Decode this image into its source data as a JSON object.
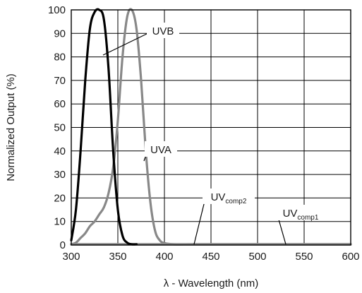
{
  "chart_data": {
    "type": "line",
    "xlabel": "λ - Wavelength (nm)",
    "ylabel": "Normalized Output (%)",
    "xlim": [
      300,
      600
    ],
    "ylim": [
      0,
      100
    ],
    "x_ticks": [
      300,
      350,
      400,
      450,
      500,
      550,
      600
    ],
    "y_ticks": [
      0,
      10,
      20,
      30,
      40,
      50,
      60,
      70,
      80,
      90,
      100
    ],
    "grid": true,
    "series": [
      {
        "name": "UVB",
        "color": "#000000",
        "x": [
          300,
          305,
          310,
          315,
          320,
          325,
          330,
          335,
          340,
          345,
          350,
          355,
          360,
          365,
          370
        ],
        "y": [
          2,
          15,
          40,
          70,
          92,
          99,
          100,
          96,
          75,
          40,
          15,
          4,
          1,
          0.3,
          0
        ]
      },
      {
        "name": "UVA",
        "color": "#888888",
        "x": [
          300,
          305,
          310,
          315,
          320,
          325,
          330,
          335,
          340,
          345,
          350,
          355,
          360,
          365,
          370,
          375,
          380,
          385,
          390,
          395,
          400,
          410,
          430,
          460,
          500,
          550,
          600
        ],
        "y": [
          0,
          1,
          3,
          5,
          8,
          10,
          13,
          16,
          22,
          33,
          53,
          80,
          97,
          100,
          92,
          70,
          40,
          18,
          6,
          2,
          0.8,
          0.3,
          0.1,
          0,
          0,
          0,
          0
        ]
      },
      {
        "name": "UV_comp2",
        "color": "#888888",
        "x": [
          300,
          400,
          450,
          500,
          550,
          600
        ],
        "y": [
          0,
          0,
          0.2,
          0.3,
          0.2,
          0.2
        ]
      },
      {
        "name": "UV_comp1",
        "color": "#888888",
        "x": [
          300,
          400,
          450,
          500,
          550,
          600
        ],
        "y": [
          0,
          0,
          0.1,
          0.2,
          0.3,
          0.3
        ]
      }
    ],
    "annotations": [
      {
        "text": "UVB",
        "x": 347,
        "y": 92,
        "series": "UVB"
      },
      {
        "text": "UVA",
        "x": 378,
        "y": 40,
        "series": "UVA"
      },
      {
        "text": "UV",
        "subscript": "comp2",
        "x": 440,
        "y": 20,
        "series": "UV_comp2"
      },
      {
        "text": "UV",
        "subscript": "comp1",
        "x": 536,
        "y": 12,
        "series": "UV_comp1"
      }
    ]
  }
}
